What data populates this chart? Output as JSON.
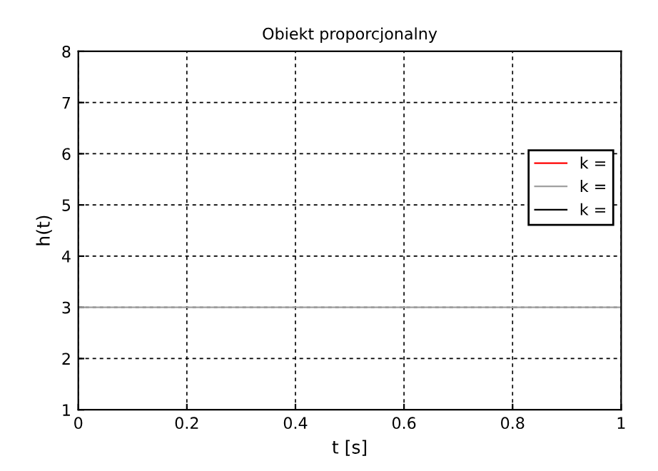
{
  "chart_data": {
    "type": "line",
    "title": "Obiekt proporcjonalny",
    "xlabel": "t [s]",
    "ylabel": "h(t)",
    "xlim": [
      0,
      1
    ],
    "ylim": [
      1,
      8
    ],
    "xticks": [
      0,
      0.2,
      0.4,
      0.6,
      0.8,
      1
    ],
    "yticks": [
      1,
      2,
      3,
      4,
      5,
      6,
      7,
      8
    ],
    "grid": true,
    "legend": "right",
    "line_style": "solid",
    "marker": "none",
    "x": [
      0,
      1
    ],
    "series": [
      {
        "name": "k =",
        "color": "#ff0000",
        "values": [
          null,
          null
        ]
      },
      {
        "name": "k =",
        "color": "#a0a0a0",
        "values": [
          3,
          3
        ]
      },
      {
        "name": "k =",
        "color": "#000000",
        "values": [
          null,
          null
        ]
      }
    ]
  }
}
